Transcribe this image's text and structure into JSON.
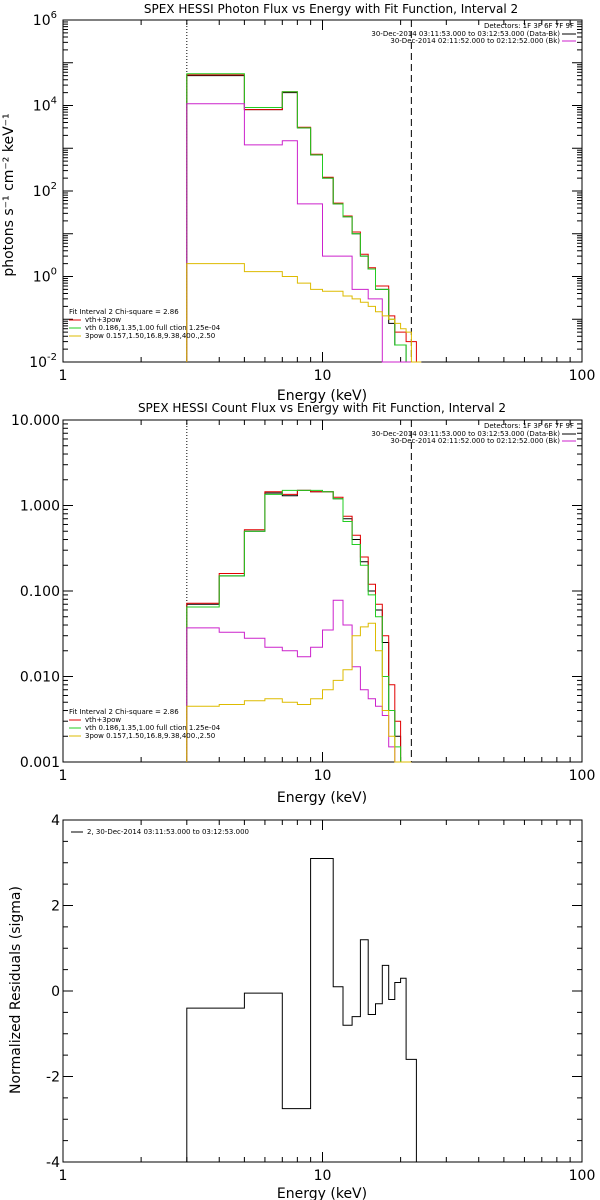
{
  "colors": {
    "red": "#e00000",
    "green": "#22cc22",
    "magenta": "#cc22cc",
    "yellow": "#ddbb00",
    "black": "#000000"
  },
  "chart_data": [
    {
      "type": "line",
      "title": "SPEX HESSI Photon Flux vs Energy with Fit Function, Interval 2",
      "xlabel": "Energy (keV)",
      "ylabel": "photons s⁻¹ cm⁻² keV⁻¹",
      "x_scale": "log",
      "y_scale": "log",
      "xlim": [
        1,
        100
      ],
      "ylim": [
        0.01,
        1000000
      ],
      "x_ticks": [
        "1",
        "10",
        "100"
      ],
      "y_ticks": [
        {
          "value": 0.01,
          "base": "10",
          "exp": "-2"
        },
        {
          "value": 1,
          "base": "10",
          "exp": "0"
        },
        {
          "value": 100,
          "base": "10",
          "exp": "2"
        },
        {
          "value": 10000,
          "base": "10",
          "exp": "4"
        },
        {
          "value": 1000000,
          "base": "10",
          "exp": "6"
        }
      ],
      "vlines": [
        {
          "x": 3,
          "style": "dotted"
        },
        {
          "x": 22,
          "style": "dashed"
        }
      ],
      "legend_top": {
        "header": "Detectors: 1F 3F 6F 7F 9F",
        "entries": [
          {
            "label": "30-Dec-2014 03:11:53.000 to 03:12:53.000 (Data-Bk)",
            "color": "#000000"
          },
          {
            "label": "30-Dec-2014 02:11:52.000 to 02:12:52.000 (Bk)",
            "color": "#cc22cc"
          }
        ]
      },
      "legend_bottom": {
        "header": "Fit Interval 2   Chi-square = 2.86",
        "entries": [
          {
            "label": "vth+3pow",
            "color": "#e00000"
          },
          {
            "label": "vth 0.186,1.35,1.00  full ction 1.25e-04",
            "color": "#22cc22"
          },
          {
            "label": "3pow 0.157,1.50,16.8,9.38,400.,2.50",
            "color": "#ddbb00"
          }
        ]
      },
      "bin_edges": [
        3,
        4,
        5,
        6,
        7,
        8,
        9,
        10,
        11,
        12,
        13,
        14,
        15,
        16,
        17,
        18,
        19,
        20,
        21,
        22,
        23,
        24
      ],
      "series": [
        {
          "color": "#000000",
          "values": [
            50000,
            50000,
            8000,
            8000,
            20000,
            3000,
            700,
            200,
            50,
            25,
            10,
            3,
            1.5,
            0.5,
            0.5,
            0.08,
            0.025,
            0.025,
            0.005,
            0.005,
            0.01
          ]
        },
        {
          "color": "#e00000",
          "values": [
            52000,
            52000,
            8000,
            8000,
            21000,
            3100,
            720,
            210,
            52,
            26,
            11,
            3.3,
            1.6,
            0.6,
            0.6,
            0.12,
            0.05,
            0.05,
            0.03,
            0.03,
            0.01
          ]
        },
        {
          "color": "#22cc22",
          "values": [
            55000,
            55000,
            9000,
            9000,
            21000,
            3000,
            700,
            200,
            50,
            25,
            10,
            3,
            1.5,
            0.5,
            0.5,
            0.1,
            0.025,
            0.025,
            0.005,
            0.005,
            0.01
          ]
        },
        {
          "color": "#cc22cc",
          "values": [
            11000,
            11000,
            1200,
            1200,
            1500,
            50,
            50,
            3,
            3,
            3,
            0.5,
            0.5,
            0.3,
            0.3,
            0.01,
            0.01,
            0.008,
            0.008,
            0.005,
            0.005,
            0.005
          ]
        },
        {
          "color": "#ddbb00",
          "values": [
            2,
            2,
            1.3,
            1.3,
            1.0,
            0.7,
            0.5,
            0.45,
            0.45,
            0.35,
            0.3,
            0.25,
            0.2,
            0.15,
            0.12,
            0.1,
            0.08,
            0.06,
            0.05,
            0.01,
            0.01
          ]
        }
      ]
    },
    {
      "type": "line",
      "title": "SPEX HESSI Count Flux vs Energy with Fit Function, Interval 2",
      "xlabel": "Energy (keV)",
      "ylabel": "",
      "x_scale": "log",
      "y_scale": "log",
      "xlim": [
        1,
        100
      ],
      "ylim": [
        0.001,
        10
      ],
      "x_ticks": [
        "1",
        "10",
        "100"
      ],
      "y_ticks": [
        {
          "value": 0.001,
          "label": "0.001"
        },
        {
          "value": 0.01,
          "label": "0.010"
        },
        {
          "value": 0.1,
          "label": "0.100"
        },
        {
          "value": 1,
          "label": "1.000"
        },
        {
          "value": 10,
          "label": "10.000"
        }
      ],
      "vlines": [
        {
          "x": 3,
          "style": "dotted"
        },
        {
          "x": 22,
          "style": "dashed"
        }
      ],
      "legend_top": {
        "header": "Detectors: 1F 3F 6F 7F 9F",
        "entries": [
          {
            "label": "30-Dec-2014 03:11:53.000 to 03:12:53.000 (Data-Bk)",
            "color": "#000000"
          },
          {
            "label": "30-Dec-2014 02:11:52.000 to 02:12:52.000 (Bk)",
            "color": "#cc22cc"
          }
        ]
      },
      "legend_bottom": {
        "header": "Fit Interval 2   Chi-square = 2.86",
        "entries": [
          {
            "label": "vth+3pow",
            "color": "#e00000"
          },
          {
            "label": "vth 0.186,1.35,1.00  full ction 1.25e-04",
            "color": "#22cc22"
          },
          {
            "label": "3pow 0.157,1.50,16.8,9.38,400.,2.50",
            "color": "#ddbb00"
          }
        ]
      },
      "bin_edges": [
        3,
        4,
        5,
        6,
        7,
        8,
        9,
        10,
        11,
        12,
        13,
        14,
        15,
        16,
        17,
        18,
        19,
        20,
        21,
        22,
        23,
        24,
        25,
        26
      ],
      "series": [
        {
          "color": "#000000",
          "values": [
            0.07,
            0.15,
            0.5,
            1.4,
            1.3,
            1.5,
            1.45,
            1.45,
            1.2,
            0.7,
            0.4,
            0.22,
            0.1,
            0.06,
            0.025,
            0.004,
            0.002
          ]
        },
        {
          "color": "#e00000",
          "values": [
            0.072,
            0.16,
            0.52,
            1.45,
            1.35,
            1.5,
            1.45,
            1.45,
            1.25,
            0.75,
            0.45,
            0.25,
            0.12,
            0.07,
            0.03,
            0.008,
            0.003,
            0.001,
            0.001
          ]
        },
        {
          "color": "#22cc22",
          "values": [
            0.065,
            0.15,
            0.5,
            1.35,
            1.5,
            1.5,
            1.5,
            1.45,
            1.2,
            0.65,
            0.35,
            0.2,
            0.09,
            0.05,
            0.01,
            0.004,
            0.0015
          ]
        },
        {
          "color": "#cc22cc",
          "values": [
            0.037,
            0.033,
            0.028,
            0.022,
            0.02,
            0.017,
            0.022,
            0.035,
            0.078,
            0.04,
            0.013,
            0.007,
            0.0055,
            0.0045,
            0.0035,
            0.0015
          ]
        },
        {
          "color": "#ddbb00",
          "values": [
            0.0045,
            0.0047,
            0.0052,
            0.0055,
            0.005,
            0.0047,
            0.0055,
            0.007,
            0.009,
            0.012,
            0.03,
            0.038,
            0.042,
            0.02,
            0.004,
            0.002,
            0.001,
            0.001,
            0.001
          ]
        }
      ]
    },
    {
      "type": "line",
      "title": "",
      "xlabel": "Energy (keV)",
      "ylabel": "Normalized Residuals (sigma)",
      "x_scale": "log",
      "y_scale": "linear",
      "xlim": [
        1,
        100
      ],
      "ylim": [
        -4,
        4
      ],
      "x_ticks": [
        "1",
        "10",
        "100"
      ],
      "y_ticks": [
        {
          "value": -4,
          "label": "-4"
        },
        {
          "value": -2,
          "label": "-2"
        },
        {
          "value": 0,
          "label": "0"
        },
        {
          "value": 2,
          "label": "2"
        },
        {
          "value": 4,
          "label": "4"
        }
      ],
      "legend_top": {
        "header": "",
        "entries": [
          {
            "label": "2, 30-Dec-2014 03:11:53.000 to 03:12:53.000",
            "color": "#000000"
          }
        ]
      },
      "bin_edges": [
        3,
        4,
        5,
        6,
        7,
        8,
        9,
        10,
        11,
        12,
        13,
        14,
        15,
        16,
        17,
        18,
        19,
        20,
        21,
        22,
        23
      ],
      "series": [
        {
          "color": "#000000",
          "values": [
            -0.4,
            -0.4,
            -0.05,
            -0.05,
            -2.75,
            -2.75,
            3.1,
            3.1,
            0.1,
            -0.8,
            -0.6,
            1.2,
            -0.55,
            -0.3,
            0.6,
            -0.2,
            0.2,
            0.3,
            -1.6,
            -1.6
          ]
        }
      ]
    }
  ]
}
